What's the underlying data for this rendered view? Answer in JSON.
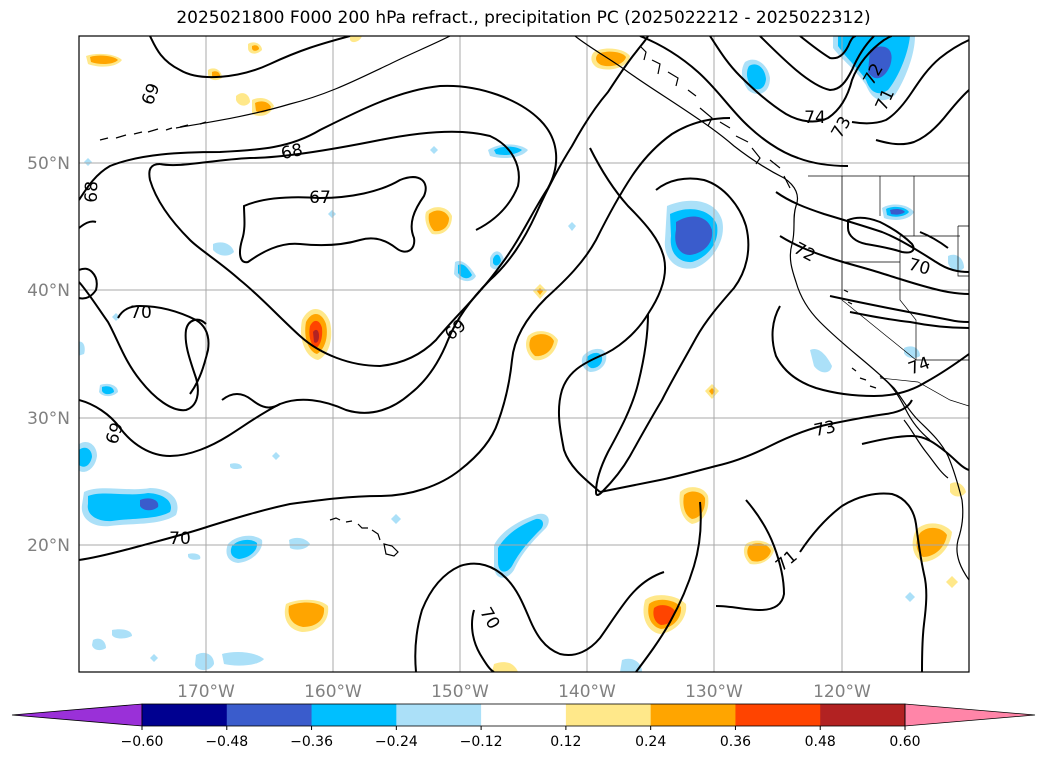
{
  "title": "2025021800 F000 200 hPa refract., precipitation PC (2025022212 - 2025022312)",
  "colors": {
    "neg_060": "#9a30d8",
    "neg_048": "#000090",
    "neg_036": "#3a5ccc",
    "neg_024": "#00bfff",
    "neg_012": "#abe0f8",
    "zero": "#ffffff",
    "pos_012": "#ffe88a",
    "pos_024": "#ffa500",
    "pos_036": "#ff4400",
    "pos_048": "#b22222",
    "pos_060": "#ff85a8"
  },
  "map": {
    "lon_range": [
      "180°",
      "110°W"
    ],
    "lat_range": [
      "10°N",
      "60°N"
    ],
    "lat_labels": [
      "50°N",
      "40°N",
      "30°N",
      "20°N"
    ],
    "lon_labels": [
      "170°W",
      "160°W",
      "150°W",
      "140°W",
      "130°W",
      "120°W"
    ],
    "contour_labels": [
      {
        "text": "69"
      },
      {
        "text": "68"
      },
      {
        "text": "68"
      },
      {
        "text": "67"
      },
      {
        "text": "70"
      },
      {
        "text": "69"
      },
      {
        "text": "69"
      },
      {
        "text": "70"
      },
      {
        "text": "70"
      },
      {
        "text": "72"
      },
      {
        "text": "73"
      },
      {
        "text": "71"
      },
      {
        "text": "74"
      },
      {
        "text": "72"
      },
      {
        "text": "73"
      },
      {
        "text": "71"
      },
      {
        "text": "70"
      },
      {
        "text": "74"
      }
    ],
    "precip_features": [
      {
        "level": "pos",
        "area": "Hawaii NW"
      },
      {
        "level": "neg",
        "area": "Subtropical Pacific"
      }
    ]
  },
  "colorbar": {
    "ticks": [
      "−0.60",
      "−0.48",
      "−0.36",
      "−0.24",
      "−0.12",
      "0.12",
      "0.24",
      "0.36",
      "0.48",
      "0.60"
    ],
    "bins": [
      "#9a30d8",
      "#000090",
      "#3a5ccc",
      "#00bfff",
      "#abe0f8",
      "#ffffff",
      "#ffe88a",
      "#ffa500",
      "#ff4400",
      "#b22222",
      "#ff85a8"
    ]
  }
}
